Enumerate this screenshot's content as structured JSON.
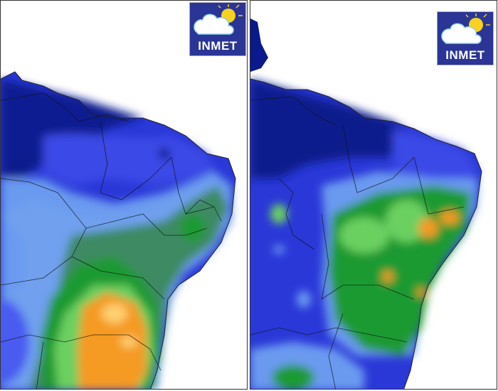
{
  "panels": [
    {
      "logo_text": "INMET"
    },
    {
      "logo_text": "INMET"
    }
  ],
  "colors": {
    "dark_navy": "#0a1a8c",
    "blue": "#2636d8",
    "mid_blue": "#4a5cf0",
    "light_blue": "#6a9af0",
    "teal_green": "#3c8a64",
    "green": "#1a9a30",
    "light_green": "#6ad060",
    "orange": "#f59a20",
    "yellow": "#ffd070"
  }
}
